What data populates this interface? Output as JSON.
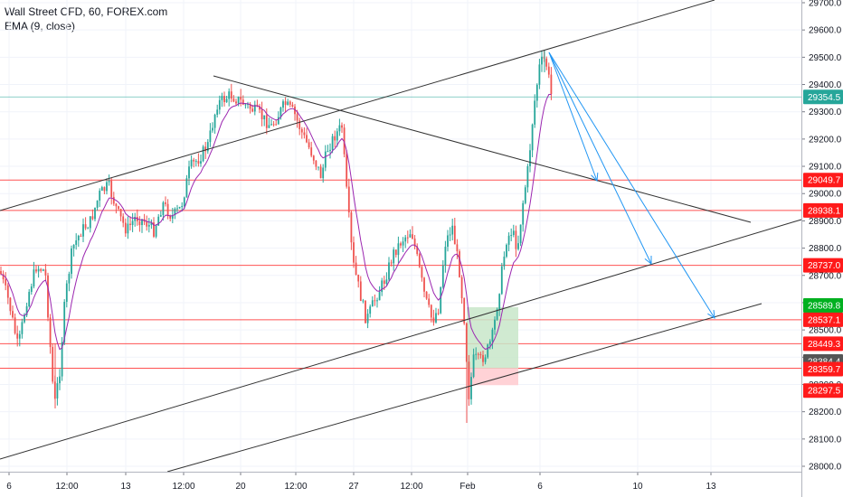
{
  "header": {
    "title": "Wall Street CFD, 60, FOREX.com",
    "indicator": "EMA (9, close)"
  },
  "chart_data": {
    "type": "candlestick",
    "ylim": [
      27980,
      29720
    ],
    "y_ticks": [
      28000.0,
      28100.0,
      28200.0,
      28300.0,
      28400.0,
      28500.0,
      28600.0,
      28700.0,
      28800.0,
      28900.0,
      29000.0,
      29100.0,
      29200.0,
      29300.0,
      29400.0,
      29500.0,
      29600.0,
      29700.0
    ],
    "x_ticks": [
      "6",
      "12:00",
      "13",
      "12:00",
      "20",
      "12:00",
      "27",
      "12:00",
      "Feb",
      "6",
      "10",
      "13"
    ],
    "grid": true,
    "price_tags": [
      {
        "label": "29354.5",
        "value": 29354.5,
        "color": "#26a69a"
      },
      {
        "label": "29049.7",
        "value": 29049.7,
        "color": "#ff1a1a"
      },
      {
        "label": "28938.1",
        "value": 28938.1,
        "color": "#ff1a1a"
      },
      {
        "label": "28737.0",
        "value": 28737.0,
        "color": "#ff1a1a"
      },
      {
        "label": "28589.8",
        "value": 28589.8,
        "color": "#00b020"
      },
      {
        "label": "28537.1",
        "value": 28537.1,
        "color": "#ff1a1a"
      },
      {
        "label": "28449.3",
        "value": 28449.3,
        "color": "#ff1a1a"
      },
      {
        "label": "28384.4",
        "value": 28384.4,
        "color": "#555555"
      },
      {
        "label": "28359.7",
        "value": 28359.7,
        "color": "#ff1a1a"
      },
      {
        "label": "28297.5",
        "value": 28297.5,
        "color": "#ff1a1a"
      }
    ],
    "horizontal_levels": [
      29049.7,
      28938.1,
      28737.0,
      28537.1,
      28449.3,
      28359.7
    ],
    "current_price": 29354.5,
    "colors": {
      "up": "#26a69a",
      "down": "#ef5350",
      "ema": "#9c27b0",
      "level": "#ff5252",
      "arrow": "#2196f3",
      "trend": "#333333"
    }
  }
}
